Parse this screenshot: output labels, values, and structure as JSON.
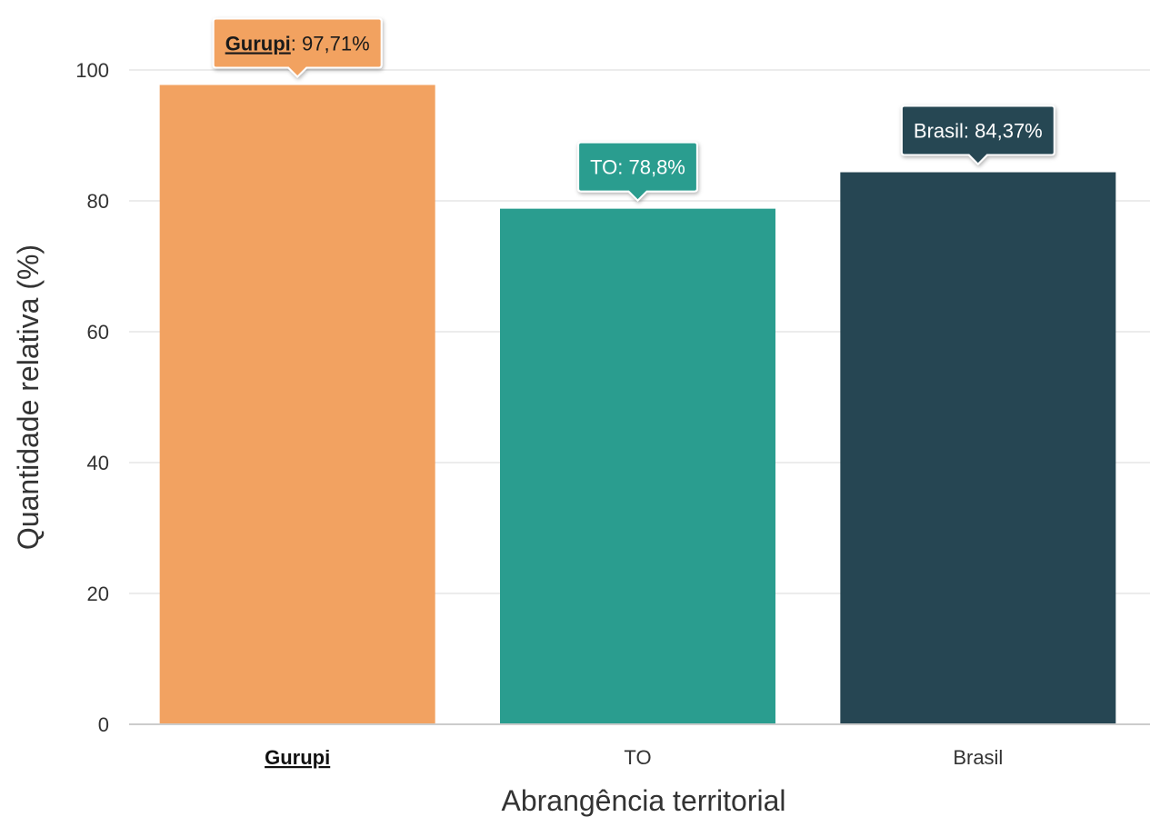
{
  "chart_data": {
    "type": "bar",
    "categories": [
      "Gurupi",
      "TO",
      "Brasil"
    ],
    "values": [
      97.71,
      78.8,
      84.37
    ],
    "value_labels": [
      "97,71%",
      "78,8%",
      "84,37%"
    ],
    "highlight_category": "Gurupi",
    "xlabel": "Abrangência territorial",
    "ylabel": "Quantidade relativa (%)",
    "ylim": [
      0,
      100
    ],
    "yticks": [
      "0",
      "20",
      "40",
      "60",
      "80",
      "100"
    ],
    "ytick_values": [
      0,
      20,
      40,
      60,
      80,
      100
    ],
    "grid": true,
    "colors": [
      "#f2a261",
      "#2a9d8f",
      "#264653"
    ],
    "tooltip_text_colors": [
      "#1a1a1a",
      "#ffffff",
      "#ffffff"
    ]
  }
}
